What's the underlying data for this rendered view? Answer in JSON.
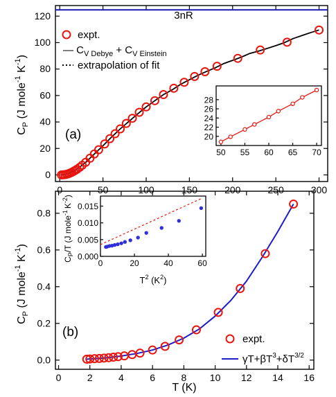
{
  "colors": {
    "expt": "#e8150f",
    "fit_blue": "#1c1cc8",
    "ref_line": "#1a1ab4",
    "dashed": "#e8150f",
    "inset_points": "#3030d8"
  },
  "chart_data": [
    {
      "id": "a",
      "type": "scatter",
      "panel_label": "(a)",
      "xlabel": "",
      "ylabel": {
        "main": "C",
        "sub": "P",
        "unit": " (J mole",
        "exp1": "-1",
        "mid": " K",
        "exp2": "-1",
        "end": ")"
      },
      "xlim": [
        -5,
        310
      ],
      "ylim": [
        -5,
        128
      ],
      "xticks": [
        0,
        50,
        100,
        150,
        200,
        250,
        300
      ],
      "yticks": [
        0,
        20,
        40,
        60,
        80,
        100,
        120
      ],
      "reference_line": {
        "label": "3nR",
        "y": 124.7
      },
      "legend": {
        "expt": "expt.",
        "fit_prefix": "— C",
        "fit_sub1": "V Debye",
        "fit_mid": " + C",
        "fit_sub2": "V Einstein",
        "extrap": "extrapolation of fit"
      },
      "expt_x": [
        2,
        4,
        6,
        8,
        10,
        12,
        14,
        16,
        18,
        20,
        23,
        26,
        30,
        35,
        40,
        45,
        52,
        58,
        64,
        70,
        77,
        84,
        92,
        100,
        110,
        120,
        132,
        144,
        156,
        168,
        182,
        206,
        232,
        263,
        300
      ],
      "expt_y": [
        0.0,
        0.1,
        0.2,
        0.5,
        0.9,
        1.4,
        2.0,
        2.7,
        3.5,
        4.3,
        5.7,
        7.3,
        9.5,
        12.6,
        15.8,
        19.0,
        23.4,
        27.4,
        31.1,
        34.8,
        38.9,
        42.8,
        47.3,
        51.4,
        56.1,
        60.7,
        65.5,
        70.0,
        74.4,
        78.0,
        82.1,
        88.1,
        94.4,
        100.3,
        109.5
      ],
      "fit_x": [
        2,
        10,
        20,
        30,
        40,
        50,
        60,
        70,
        80,
        90,
        100,
        110,
        120,
        130,
        140,
        150,
        160,
        170,
        180,
        190,
        200,
        210,
        220,
        230,
        240,
        250,
        260,
        270,
        280,
        290,
        300
      ],
      "fit_y": [
        0.0,
        0.9,
        4.3,
        9.5,
        15.8,
        22.0,
        28.6,
        34.8,
        40.4,
        46.0,
        51.4,
        56.1,
        60.7,
        64.3,
        68.5,
        71.9,
        75.3,
        78.2,
        81.0,
        84.2,
        86.6,
        89.0,
        91.8,
        93.6,
        95.6,
        97.7,
        100.0,
        103.0,
        105.3,
        107.5,
        109.5
      ],
      "inset": {
        "type": "line",
        "xlim": [
          49,
          71
        ],
        "ylim": [
          18,
          31
        ],
        "xticks": [
          50,
          55,
          60,
          65,
          70
        ],
        "yticks": [
          20,
          22,
          24,
          26,
          28
        ],
        "x": [
          50,
          52,
          55,
          57,
          60,
          62,
          65,
          67,
          70
        ],
        "y": [
          18.8,
          19.9,
          21.5,
          22.6,
          24.2,
          25.5,
          27.1,
          28.5,
          30.1
        ]
      }
    },
    {
      "id": "b",
      "type": "scatter",
      "panel_label": "(b)",
      "xlabel": "T (K)",
      "ylabel": {
        "main": "C",
        "sub": "P",
        "unit": " (J mole",
        "exp1": "-1",
        "mid": " K",
        "exp2": "-1",
        "end": ")"
      },
      "xlim": [
        -0.2,
        16.3
      ],
      "ylim": [
        -0.05,
        0.92
      ],
      "xticks": [
        0,
        2,
        4,
        6,
        8,
        10,
        12,
        14,
        16
      ],
      "yticks": [
        0.0,
        0.2,
        0.4,
        0.6,
        0.8
      ],
      "ytick_labels": [
        "0.0",
        "0.2",
        "0.4",
        "0.6",
        "0.8"
      ],
      "legend": {
        "expt": "expt.",
        "fit_text": "γT+βT",
        "fit_e1": "3",
        "fit_mid": "+δT",
        "fit_e2": "3/2"
      },
      "expt_x": [
        1.8,
        2.0,
        2.3,
        2.6,
        2.9,
        3.2,
        3.5,
        3.8,
        4.2,
        4.7,
        5.2,
        6.0,
        6.8,
        7.7,
        8.8,
        10.2,
        11.6,
        13.2,
        15.0
      ],
      "expt_y": [
        0.005,
        0.006,
        0.008,
        0.009,
        0.011,
        0.013,
        0.016,
        0.019,
        0.023,
        0.03,
        0.038,
        0.055,
        0.075,
        0.11,
        0.165,
        0.26,
        0.39,
        0.58,
        0.85
      ],
      "fit_x": [
        1.8,
        3,
        4,
        5,
        6,
        7,
        8,
        9,
        10,
        11,
        12,
        13,
        14,
        15
      ],
      "fit_y": [
        0.005,
        0.012,
        0.022,
        0.036,
        0.055,
        0.083,
        0.12,
        0.17,
        0.24,
        0.325,
        0.43,
        0.56,
        0.7,
        0.85
      ],
      "inset": {
        "type": "scatter",
        "xlabel_main": "T",
        "xlabel_exp": "2",
        "xlabel_unit": " (K",
        "xlabel_exp2": "2",
        "xlabel_end": ")",
        "ylabel": "C",
        "ylabel_sub": "P",
        "ylabel_rest": "/T (J mole",
        "ylabel_e1": "-1",
        "ylabel_mid": "K",
        "ylabel_e2": "-2",
        "ylabel_end": ")",
        "xlim": [
          0,
          62
        ],
        "ylim": [
          0.0,
          0.018
        ],
        "xticks": [
          0,
          20,
          40,
          60
        ],
        "yticks": [
          0.0,
          0.005,
          0.01,
          0.015
        ],
        "ytick_labels": [
          "0.000",
          "0.005",
          "0.010",
          "0.015"
        ],
        "x": [
          3.2,
          4.0,
          5.3,
          6.8,
          8.4,
          10.2,
          12.3,
          14.4,
          17.6,
          22.1,
          27.0,
          36.0,
          46.2,
          59.3
        ],
        "y": [
          0.0028,
          0.0029,
          0.0031,
          0.0032,
          0.0034,
          0.0036,
          0.0039,
          0.0043,
          0.0048,
          0.0056,
          0.007,
          0.0085,
          0.0106,
          0.0144
        ],
        "dashed_x": [
          0,
          60
        ],
        "dashed_y": [
          0.0035,
          0.0174
        ]
      }
    }
  ]
}
